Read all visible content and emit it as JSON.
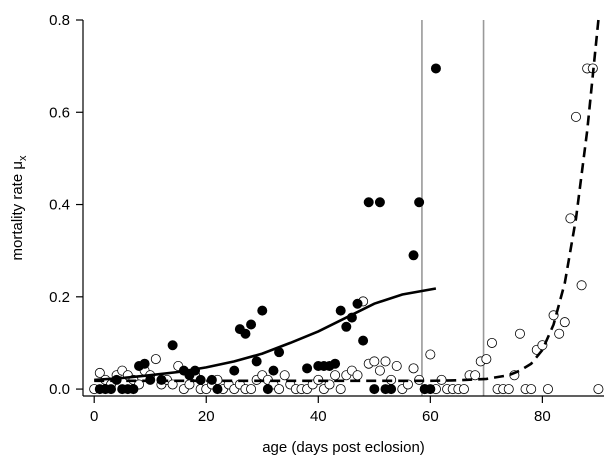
{
  "chart_data": {
    "type": "scatter",
    "xlabel": "age (days post eclosion)",
    "ylabel": "mortality rate μ",
    "ylabel_subscript": "x",
    "xlim": [
      -2,
      91
    ],
    "ylim": [
      -0.015,
      0.8
    ],
    "x_ticks": [
      0,
      20,
      40,
      60,
      80
    ],
    "y_ticks": [
      0.0,
      0.2,
      0.4,
      0.6,
      0.8
    ],
    "y_tick_labels": [
      "0.0",
      "0.2",
      "0.4",
      "0.6",
      "0.8"
    ],
    "grid": false,
    "vertical_lines": [
      58.5,
      69.5
    ],
    "colors": {
      "filled": "#000000",
      "open_fill": "#ffffff",
      "vline": "#999999",
      "axis": "#000000"
    },
    "series": [
      {
        "marker": "filled",
        "points": [
          [
            1,
            0
          ],
          [
            2,
            0
          ],
          [
            3,
            0
          ],
          [
            4,
            0.02
          ],
          [
            5,
            0
          ],
          [
            6,
            0
          ],
          [
            7,
            0
          ],
          [
            8,
            0.05
          ],
          [
            9,
            0.055
          ],
          [
            10,
            0.02
          ],
          [
            12,
            0.02
          ],
          [
            14,
            0.095
          ],
          [
            16,
            0.04
          ],
          [
            17,
            0.03
          ],
          [
            18,
            0.04
          ],
          [
            19,
            0.02
          ],
          [
            21,
            0.02
          ],
          [
            22,
            0
          ],
          [
            25,
            0.04
          ],
          [
            26,
            0.13
          ],
          [
            27,
            0.12
          ],
          [
            28,
            0.14
          ],
          [
            29,
            0.06
          ],
          [
            30,
            0.17
          ],
          [
            31,
            0
          ],
          [
            32,
            0.04
          ],
          [
            33,
            0.08
          ],
          [
            38,
            0.045
          ],
          [
            40,
            0.05
          ],
          [
            41,
            0.05
          ],
          [
            42,
            0.05
          ],
          [
            43,
            0.055
          ],
          [
            44,
            0.17
          ],
          [
            45,
            0.135
          ],
          [
            46,
            0.155
          ],
          [
            47,
            0.185
          ],
          [
            48,
            0.105
          ],
          [
            49,
            0.405
          ],
          [
            50,
            0
          ],
          [
            51,
            0.405
          ],
          [
            52,
            0
          ],
          [
            53,
            0
          ],
          [
            57,
            0.29
          ],
          [
            58,
            0.405
          ],
          [
            59,
            0
          ],
          [
            60,
            0
          ],
          [
            61,
            0.695
          ]
        ]
      },
      {
        "marker": "open",
        "points": [
          [
            0,
            0
          ],
          [
            1,
            0.035
          ],
          [
            2,
            0.02
          ],
          [
            3,
            0.01
          ],
          [
            4,
            0.03
          ],
          [
            5,
            0.04
          ],
          [
            6,
            0.03
          ],
          [
            7,
            0.02
          ],
          [
            8,
            0.01
          ],
          [
            9,
            0.04
          ],
          [
            10,
            0.03
          ],
          [
            11,
            0.065
          ],
          [
            12,
            0.01
          ],
          [
            13,
            0.02
          ],
          [
            14,
            0.01
          ],
          [
            15,
            0.05
          ],
          [
            16,
            0
          ],
          [
            17,
            0.01
          ],
          [
            18,
            0.03
          ],
          [
            19,
            0
          ],
          [
            20,
            0
          ],
          [
            21,
            0.01
          ],
          [
            22,
            0.02
          ],
          [
            23,
            0
          ],
          [
            24,
            0.01
          ],
          [
            25,
            0
          ],
          [
            26,
            0.01
          ],
          [
            27,
            0
          ],
          [
            28,
            0
          ],
          [
            29,
            0.02
          ],
          [
            30,
            0.03
          ],
          [
            31,
            0.02
          ],
          [
            32,
            0.01
          ],
          [
            33,
            0
          ],
          [
            34,
            0.03
          ],
          [
            35,
            0.01
          ],
          [
            36,
            0
          ],
          [
            37,
            0
          ],
          [
            38,
            0
          ],
          [
            39,
            0.01
          ],
          [
            40,
            0.02
          ],
          [
            41,
            0
          ],
          [
            42,
            0.01
          ],
          [
            43,
            0.03
          ],
          [
            44,
            0
          ],
          [
            45,
            0.03
          ],
          [
            46,
            0.04
          ],
          [
            47,
            0.03
          ],
          [
            48,
            0.19
          ],
          [
            49,
            0.055
          ],
          [
            50,
            0.06
          ],
          [
            51,
            0.04
          ],
          [
            52,
            0.06
          ],
          [
            53,
            0.02
          ],
          [
            54,
            0.05
          ],
          [
            55,
            0
          ],
          [
            56,
            0.01
          ],
          [
            57,
            0.045
          ],
          [
            58,
            0.02
          ],
          [
            59,
            0
          ],
          [
            60,
            0.075
          ],
          [
            61,
            0
          ],
          [
            62,
            0.02
          ],
          [
            63,
            0
          ],
          [
            64,
            0
          ],
          [
            65,
            0
          ],
          [
            66,
            0
          ],
          [
            67,
            0.03
          ],
          [
            68,
            0.03
          ],
          [
            69,
            0.06
          ],
          [
            70,
            0.065
          ],
          [
            71,
            0.1
          ],
          [
            72,
            0
          ],
          [
            73,
            0
          ],
          [
            74,
            0
          ],
          [
            75,
            0.03
          ],
          [
            76,
            0.12
          ],
          [
            77,
            0
          ],
          [
            78,
            0
          ],
          [
            79,
            0.085
          ],
          [
            80,
            0.095
          ],
          [
            81,
            0
          ],
          [
            82,
            0.16
          ],
          [
            83,
            0.12
          ],
          [
            84,
            0.145
          ],
          [
            85,
            0.37
          ],
          [
            86,
            0.59
          ],
          [
            87,
            0.225
          ],
          [
            88,
            0.695
          ],
          [
            89,
            0.695
          ],
          [
            90,
            0
          ]
        ]
      }
    ],
    "fit_lines": [
      {
        "style": "solid",
        "points": [
          [
            0,
            0.02
          ],
          [
            5,
            0.024
          ],
          [
            10,
            0.03
          ],
          [
            15,
            0.037
          ],
          [
            20,
            0.047
          ],
          [
            25,
            0.06
          ],
          [
            30,
            0.077
          ],
          [
            35,
            0.1
          ],
          [
            40,
            0.125
          ],
          [
            45,
            0.155
          ],
          [
            50,
            0.185
          ],
          [
            55,
            0.205
          ],
          [
            61,
            0.218
          ]
        ]
      },
      {
        "style": "dashed",
        "points": [
          [
            0,
            0.018
          ],
          [
            10,
            0.018
          ],
          [
            20,
            0.018
          ],
          [
            30,
            0.018
          ],
          [
            40,
            0.018
          ],
          [
            50,
            0.018
          ],
          [
            60,
            0.018
          ],
          [
            65,
            0.019
          ],
          [
            70,
            0.022
          ],
          [
            74,
            0.03
          ],
          [
            76,
            0.04
          ],
          [
            78,
            0.055
          ],
          [
            80,
            0.085
          ],
          [
            82,
            0.14
          ],
          [
            84,
            0.23
          ],
          [
            86,
            0.37
          ],
          [
            88,
            0.56
          ],
          [
            89,
            0.68
          ],
          [
            90,
            0.8
          ]
        ]
      }
    ]
  }
}
